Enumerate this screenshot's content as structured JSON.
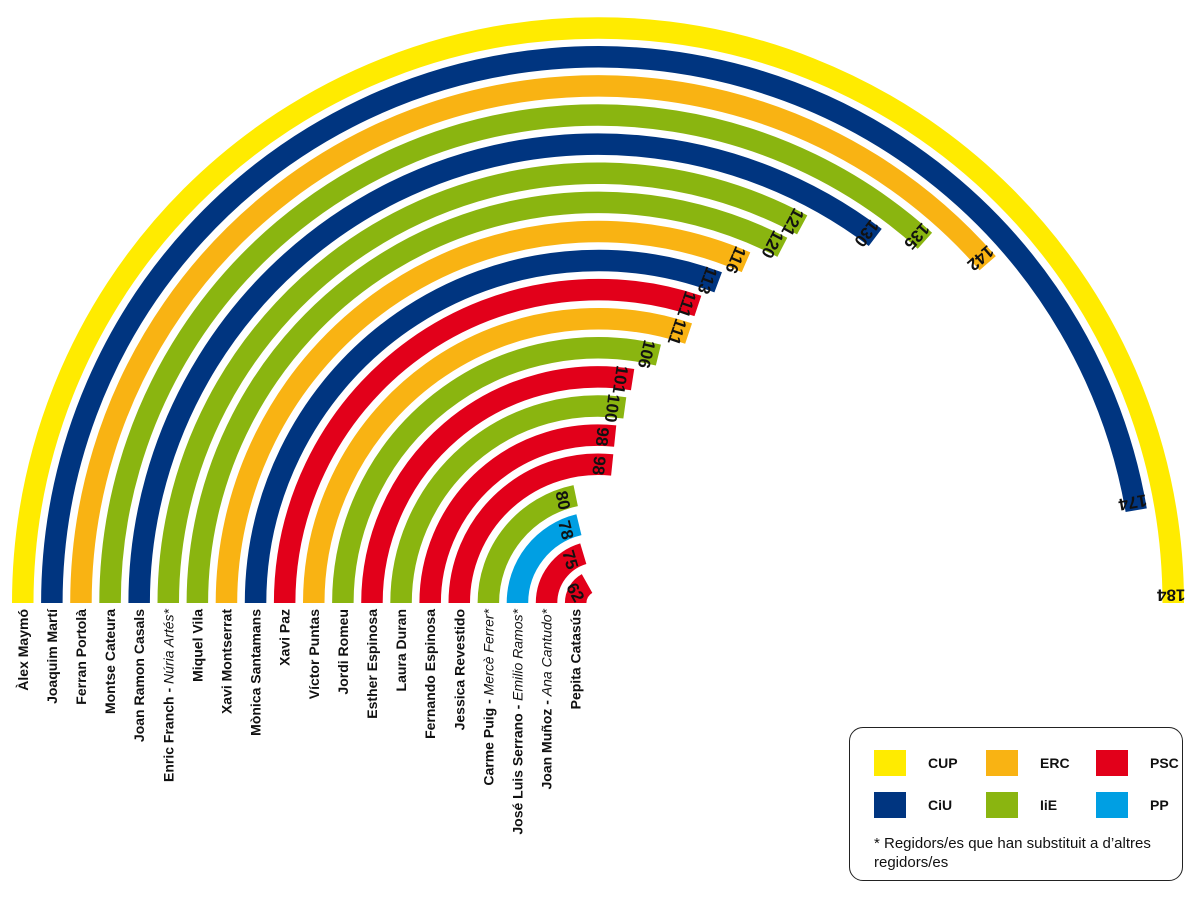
{
  "chart_data": {
    "type": "radial-bar",
    "max_value": 184,
    "note": "* Regidors/es que han substituit a d’altres regidors/es",
    "parties": [
      {
        "key": "CUP",
        "label": "CUP",
        "color": "#FFEB00"
      },
      {
        "key": "ERC",
        "label": "ERC",
        "color": "#F9B313"
      },
      {
        "key": "PSC",
        "label": "PSC",
        "color": "#E2001A"
      },
      {
        "key": "CiU",
        "label": "CiU",
        "color": "#003580"
      },
      {
        "key": "IiE",
        "label": "IiE",
        "color": "#8AB510"
      },
      {
        "key": "PP",
        "label": "PP",
        "color": "#009FE3"
      }
    ],
    "bars": [
      {
        "name": "Àlex Maymó",
        "party": "CUP",
        "value": 184
      },
      {
        "name": "Joaquim Martí",
        "party": "CiU",
        "value": 174
      },
      {
        "name": "Ferran Portolà",
        "party": "ERC",
        "value": 142
      },
      {
        "name": "Montse Cateura",
        "party": "IiE",
        "value": 135
      },
      {
        "name": "Joan Ramon Casals",
        "party": "CiU",
        "value": 130
      },
      {
        "name": "Enric Franch - ",
        "substitute": "Núria Artés*",
        "party": "IiE",
        "value": 121
      },
      {
        "name": "Miquel Vila",
        "party": "IiE",
        "value": 120
      },
      {
        "name": "Xavi Montserrat",
        "party": "ERC",
        "value": 116
      },
      {
        "name": "Mònica Santamans",
        "party": "CiU",
        "value": 113
      },
      {
        "name": "Xavi Paz",
        "party": "PSC",
        "value": 111
      },
      {
        "name": "Víctor Puntas",
        "party": "ERC",
        "value": 111
      },
      {
        "name": "Jordi Romeu",
        "party": "IiE",
        "value": 106
      },
      {
        "name": "Esther Espinosa",
        "party": "PSC",
        "value": 101
      },
      {
        "name": "Laura Duran",
        "party": "IiE",
        "value": 100
      },
      {
        "name": "Fernando Espinosa",
        "party": "PSC",
        "value": 98
      },
      {
        "name": "Jessica Revestido",
        "party": "PSC",
        "value": 98
      },
      {
        "name": "Carme Puig - ",
        "substitute": "Mercè Ferrer*",
        "party": "IiE",
        "value": 80
      },
      {
        "name": "José Luis Serrano - ",
        "substitute": "Emilio Ramos*",
        "party": "PP",
        "value": 78
      },
      {
        "name": "Joan Muñoz - ",
        "substitute": "Ana Cantudo*",
        "party": "PSC",
        "value": 75
      },
      {
        "name": "Pepita Catasús",
        "party": "PSC",
        "value": 62
      }
    ]
  }
}
